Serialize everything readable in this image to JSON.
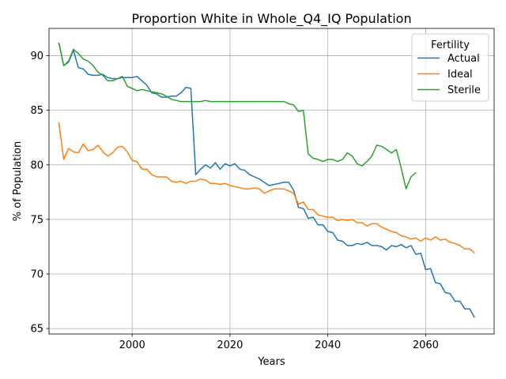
{
  "chart_data": {
    "type": "line",
    "title": "Proportion White in Whole_Q4_IQ Population",
    "xlabel": "Years",
    "ylabel": "% of Population",
    "xlim": [
      1983,
      2074
    ],
    "ylim": [
      64.5,
      92.5
    ],
    "xticks": [
      2000,
      2020,
      2040,
      2060
    ],
    "yticks": [
      65,
      70,
      75,
      80,
      85,
      90
    ],
    "grid": true,
    "legend": {
      "title": "Fertility",
      "placement": "top-right"
    },
    "series": [
      {
        "name": "Actual",
        "color": "#1f77b4",
        "x": [
          1985,
          1986,
          1987,
          1988,
          1989,
          1990,
          1991,
          1992,
          1993,
          1994,
          1995,
          1996,
          1997,
          1998,
          1999,
          2000,
          2001,
          2002,
          2003,
          2004,
          2005,
          2006,
          2007,
          2008,
          2009,
          2010,
          2011,
          2012,
          2013,
          2014,
          2015,
          2016,
          2017,
          2018,
          2019,
          2020,
          2021,
          2022,
          2023,
          2024,
          2025,
          2026,
          2027,
          2028,
          2029,
          2030,
          2031,
          2032,
          2033,
          2034,
          2035,
          2036,
          2037,
          2038,
          2039,
          2040,
          2041,
          2042,
          2043,
          2044,
          2045,
          2046,
          2047,
          2048,
          2049,
          2050,
          2051,
          2052,
          2053,
          2054,
          2055,
          2056,
          2057,
          2058,
          2059,
          2060,
          2061,
          2062,
          2063,
          2064,
          2065,
          2066,
          2067,
          2068,
          2069,
          2070
        ],
        "values": [
          91.2,
          89.1,
          89.4,
          90.5,
          88.9,
          88.8,
          88.3,
          88.2,
          88.2,
          88.3,
          88.0,
          87.9,
          87.9,
          88.0,
          88.0,
          88.0,
          88.1,
          87.7,
          87.3,
          86.6,
          86.5,
          86.2,
          86.2,
          86.3,
          86.3,
          86.6,
          87.1,
          87.0,
          79.1,
          79.6,
          80.0,
          79.7,
          80.2,
          79.6,
          80.1,
          79.9,
          80.1,
          79.6,
          79.5,
          79.1,
          78.9,
          78.7,
          78.4,
          78.1,
          78.2,
          78.3,
          78.4,
          78.4,
          77.7,
          76.1,
          76.0,
          75.1,
          75.2,
          74.5,
          74.5,
          73.9,
          73.8,
          73.1,
          73.0,
          72.6,
          72.6,
          72.8,
          72.7,
          72.9,
          72.6,
          72.6,
          72.5,
          72.2,
          72.6,
          72.5,
          72.7,
          72.4,
          72.6,
          71.8,
          71.9,
          70.4,
          70.5,
          69.2,
          69.1,
          68.3,
          68.2,
          67.5,
          67.5,
          66.8,
          66.8,
          66.0
        ]
      },
      {
        "name": "Ideal",
        "color": "#ff7f0e",
        "x": [
          1985,
          1986,
          1987,
          1988,
          1989,
          1990,
          1991,
          1992,
          1993,
          1994,
          1995,
          1996,
          1997,
          1998,
          1999,
          2000,
          2001,
          2002,
          2003,
          2004,
          2005,
          2006,
          2007,
          2008,
          2009,
          2010,
          2011,
          2012,
          2013,
          2014,
          2015,
          2016,
          2017,
          2018,
          2019,
          2020,
          2021,
          2022,
          2023,
          2024,
          2025,
          2026,
          2027,
          2028,
          2029,
          2030,
          2031,
          2032,
          2033,
          2034,
          2035,
          2036,
          2037,
          2038,
          2039,
          2040,
          2041,
          2042,
          2043,
          2044,
          2045,
          2046,
          2047,
          2048,
          2049,
          2050,
          2051,
          2052,
          2053,
          2054,
          2055,
          2056,
          2057,
          2058,
          2059,
          2060,
          2061,
          2062,
          2063,
          2064,
          2065,
          2066,
          2067,
          2068,
          2069,
          2070
        ],
        "values": [
          83.9,
          80.5,
          81.5,
          81.2,
          81.1,
          81.9,
          81.3,
          81.4,
          81.8,
          81.2,
          80.8,
          81.1,
          81.6,
          81.7,
          81.2,
          80.4,
          80.3,
          79.6,
          79.6,
          79.1,
          78.9,
          78.9,
          78.9,
          78.5,
          78.4,
          78.5,
          78.3,
          78.5,
          78.5,
          78.7,
          78.6,
          78.3,
          78.3,
          78.2,
          78.3,
          78.1,
          78.0,
          77.9,
          77.8,
          77.8,
          77.9,
          77.8,
          77.4,
          77.6,
          77.8,
          77.8,
          77.8,
          77.6,
          77.4,
          76.4,
          76.6,
          75.9,
          75.9,
          75.4,
          75.3,
          75.2,
          75.2,
          74.9,
          75.0,
          74.9,
          75.0,
          74.7,
          74.7,
          74.4,
          74.6,
          74.6,
          74.3,
          74.1,
          73.9,
          73.8,
          73.5,
          73.4,
          73.2,
          73.3,
          73.0,
          73.3,
          73.1,
          73.4,
          73.1,
          73.2,
          72.9,
          72.8,
          72.6,
          72.3,
          72.3,
          71.9
        ]
      },
      {
        "name": "Sterile",
        "color": "#2ca02c",
        "x": [
          1985,
          1986,
          1987,
          1988,
          1989,
          1990,
          1991,
          1992,
          1993,
          1994,
          1995,
          1996,
          1997,
          1998,
          1999,
          2000,
          2001,
          2002,
          2003,
          2004,
          2005,
          2006,
          2007,
          2008,
          2009,
          2010,
          2011,
          2012,
          2013,
          2014,
          2015,
          2016,
          2017,
          2018,
          2019,
          2020,
          2021,
          2022,
          2023,
          2024,
          2025,
          2026,
          2027,
          2028,
          2029,
          2030,
          2031,
          2032,
          2033,
          2034,
          2035,
          2036,
          2037,
          2038,
          2039,
          2040,
          2041,
          2042,
          2043,
          2044,
          2045,
          2046,
          2047,
          2048,
          2049,
          2050,
          2051,
          2052,
          2053,
          2054,
          2055,
          2056,
          2057,
          2058
        ],
        "values": [
          91.2,
          89.1,
          89.5,
          90.6,
          90.2,
          89.7,
          89.5,
          89.1,
          88.5,
          88.2,
          87.7,
          87.7,
          87.9,
          88.1,
          87.2,
          87.0,
          86.8,
          86.9,
          86.8,
          86.7,
          86.6,
          86.5,
          86.3,
          86.0,
          85.9,
          85.8,
          85.8,
          85.8,
          85.8,
          85.8,
          85.9,
          85.8,
          85.8,
          85.8,
          85.8,
          85.8,
          85.8,
          85.8,
          85.8,
          85.8,
          85.8,
          85.8,
          85.8,
          85.8,
          85.8,
          85.8,
          85.8,
          85.6,
          85.5,
          84.9,
          85.0,
          81.0,
          80.6,
          80.5,
          80.3,
          80.5,
          80.5,
          80.3,
          80.5,
          81.1,
          80.8,
          80.1,
          79.9,
          80.3,
          80.8,
          81.8,
          81.7,
          81.4,
          81.1,
          81.4,
          79.7,
          77.8,
          78.9,
          79.3
        ]
      }
    ]
  }
}
